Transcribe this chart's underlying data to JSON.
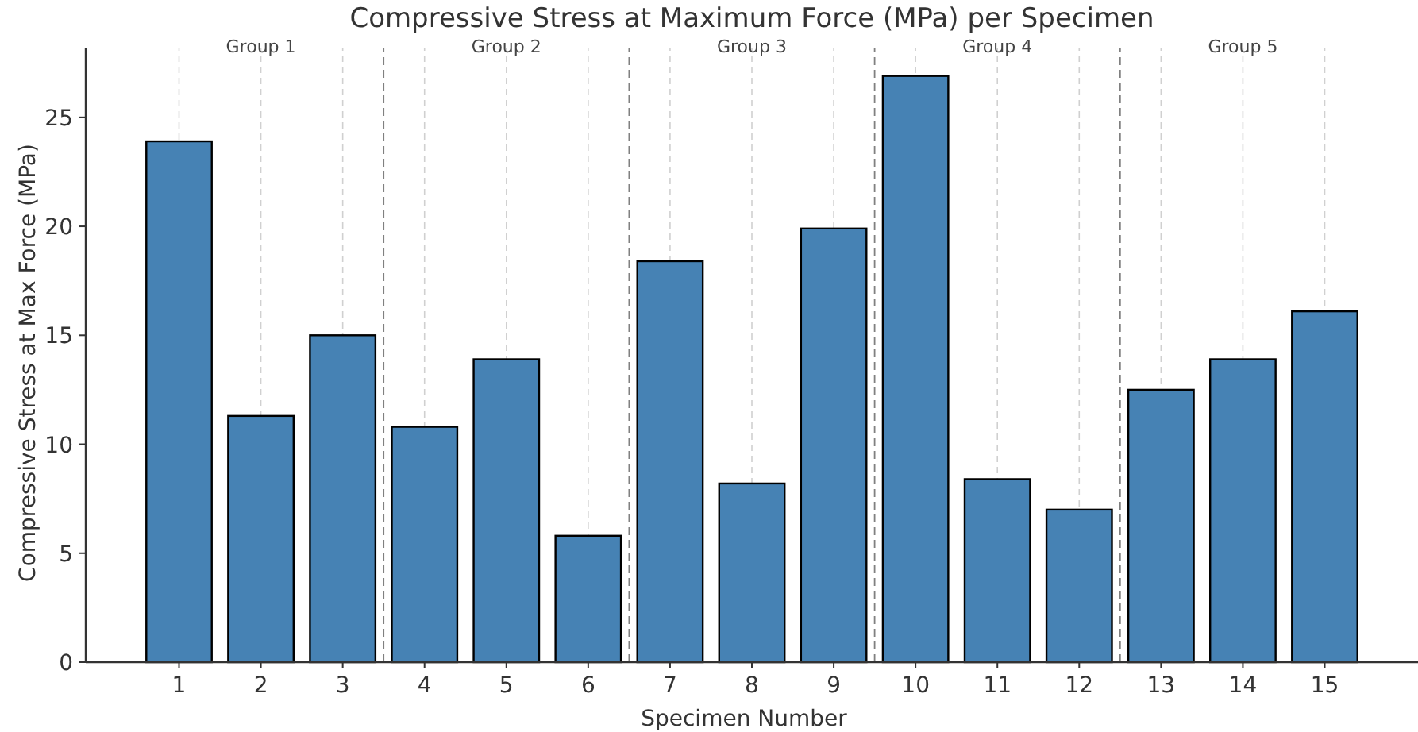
{
  "chart_data": {
    "type": "bar",
    "title": "Compressive Stress at Maximum Force (MPa) per Specimen",
    "xlabel": "Specimen Number",
    "ylabel": "Compressive Stress at Max Force (MPa)",
    "x": [
      1,
      2,
      3,
      4,
      5,
      6,
      7,
      8,
      9,
      10,
      11,
      12,
      13,
      14,
      15
    ],
    "values": [
      23.9,
      11.3,
      15.0,
      10.8,
      13.9,
      5.8,
      18.4,
      8.2,
      19.9,
      26.9,
      8.4,
      7.0,
      12.5,
      13.9,
      16.1
    ],
    "color": "#4682b4",
    "xlim": [
      -0.14,
      16.14
    ],
    "xticks": [
      1,
      2,
      3,
      4,
      5,
      6,
      7,
      8,
      9,
      10,
      11,
      12,
      13,
      14,
      15
    ],
    "ylim": [
      0,
      28.2
    ],
    "yticks": [
      0,
      5,
      10,
      15,
      20,
      25
    ],
    "grid": "x",
    "ref_lines": [
      {
        "axis": "x",
        "value": 3.5,
        "color": "#808080",
        "line_style": "dashed"
      },
      {
        "axis": "x",
        "value": 6.5,
        "color": "#808080",
        "line_style": "dashed"
      },
      {
        "axis": "x",
        "value": 9.5,
        "color": "#808080",
        "line_style": "dashed"
      },
      {
        "axis": "x",
        "value": 12.5,
        "color": "#808080",
        "line_style": "dashed"
      }
    ],
    "annotations": [
      "Group 1",
      "Group 2",
      "Group 3",
      "Group 4",
      "Group 5"
    ]
  }
}
